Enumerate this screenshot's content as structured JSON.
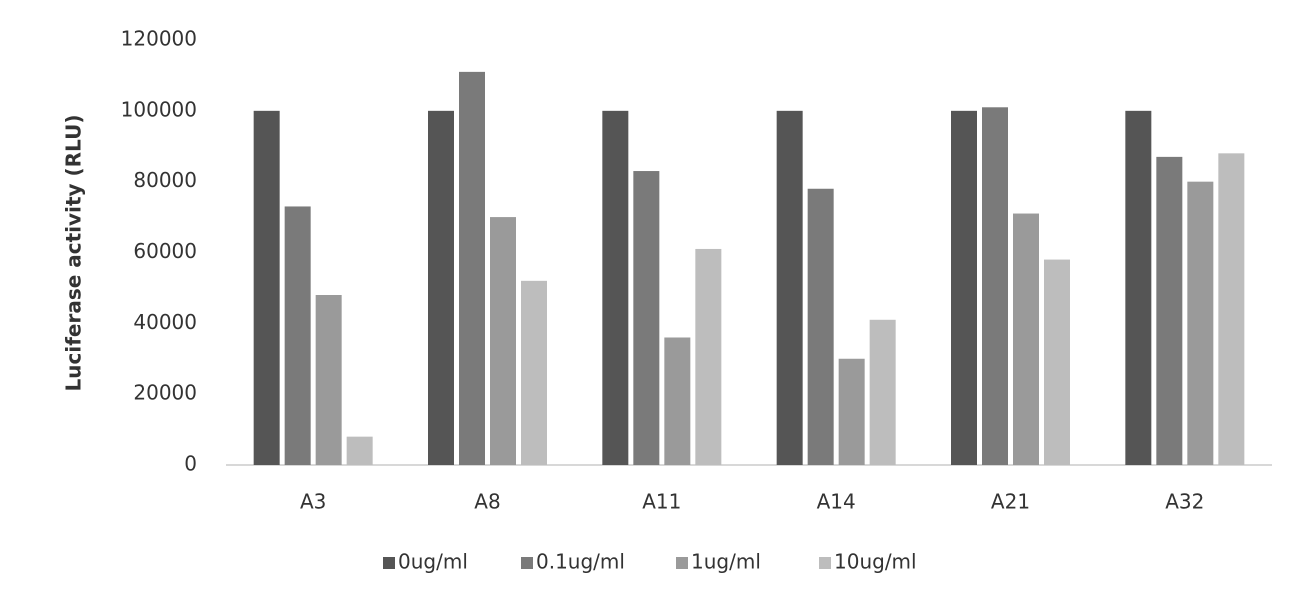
{
  "chart_data": {
    "type": "bar",
    "y_label": "Luciferase activity (RLU)",
    "categories": [
      "A3",
      "A8",
      "A11",
      "A14",
      "A21",
      "A32"
    ],
    "series": [
      {
        "name": "0ug/ml",
        "color": "#555555",
        "values": [
          100000,
          100000,
          100000,
          100000,
          100000,
          100000
        ]
      },
      {
        "name": "0.1ug/ml",
        "color": "#7a7a7a",
        "values": [
          73000,
          111000,
          83000,
          78000,
          101000,
          87000
        ]
      },
      {
        "name": "1ug/ml",
        "color": "#9a9a9a",
        "values": [
          48000,
          70000,
          36000,
          30000,
          71000,
          80000
        ]
      },
      {
        "name": "10ug/ml",
        "color": "#bdbdbd",
        "values": [
          8000,
          52000,
          61000,
          41000,
          58000,
          88000
        ]
      }
    ],
    "ylim": [
      0,
      120000
    ],
    "yticks": [
      0,
      20000,
      40000,
      60000,
      80000,
      100000,
      120000
    ],
    "grid": false,
    "legend": "bottom"
  }
}
